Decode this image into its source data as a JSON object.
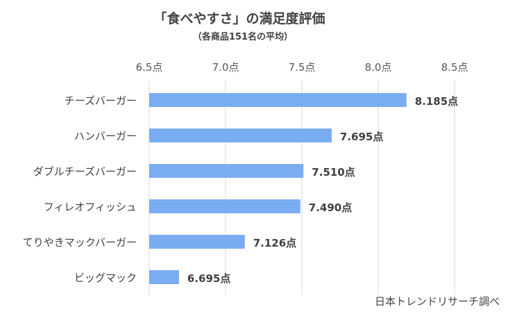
{
  "chart_data": {
    "type": "bar",
    "orientation": "horizontal",
    "title": "「食べやすさ」の満足度評価",
    "subtitle": "（各商品151名の平均）",
    "source_note": "日本トレンドリサーチ調べ",
    "categories": [
      "チーズバーガー",
      "ハンバーガー",
      "ダブルチーズバーガー",
      "フィレオフィッシュ",
      "てりやきマックバーガー",
      "ビッグマック"
    ],
    "values": [
      8.185,
      7.695,
      7.51,
      7.49,
      7.126,
      6.695
    ],
    "data_labels": [
      "8.185点",
      "7.695点",
      "7.510点",
      "7.490点",
      "7.126点",
      "6.695点"
    ],
    "xlim": [
      6.5,
      8.5
    ],
    "ticks": [
      6.5,
      7.0,
      7.5,
      8.0,
      8.5
    ],
    "tick_labels": [
      "6.5点",
      "7.0点",
      "7.5点",
      "8.0点",
      "8.5点"
    ],
    "axis_position": "top",
    "grid": true,
    "bar_color": "#7aacf2",
    "grid_color": "#d9d9d9"
  }
}
